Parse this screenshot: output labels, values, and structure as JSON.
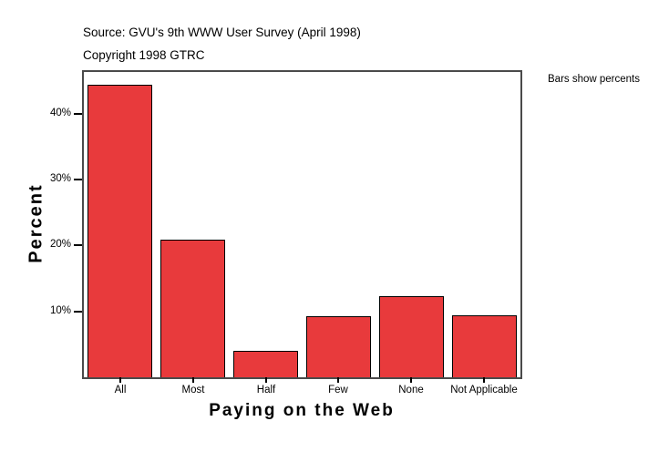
{
  "header": {
    "source": "Source: GVU's 9th WWW User Survey (April 1998)",
    "copyright": "Copyright 1998 GTRC"
  },
  "annotation": {
    "note": "Bars show percents"
  },
  "chart_data": {
    "type": "bar",
    "title": "Source: GVU's 9th WWW User Survey (April 1998)",
    "subtitle": "Copyright 1998 GTRC",
    "categories": [
      "All",
      "Most",
      "Half",
      "Few",
      "None",
      "Not Applicable"
    ],
    "values": [
      44.4,
      20.9,
      4.0,
      9.2,
      12.3,
      9.4
    ],
    "xlabel": "Paying on the Web",
    "ylabel": "Percent",
    "ylim": [
      0,
      46.3
    ],
    "yticks": [
      10,
      20,
      30,
      40
    ],
    "ytick_suffix": "%",
    "grid": false,
    "legend_position": "none",
    "annotation": "Bars show percents"
  },
  "colors": {
    "bar_fill": "#e83a3c",
    "bar_border": "#000000",
    "frame": "#4a4a4a",
    "background": "#ffffff",
    "text": "#000000"
  }
}
